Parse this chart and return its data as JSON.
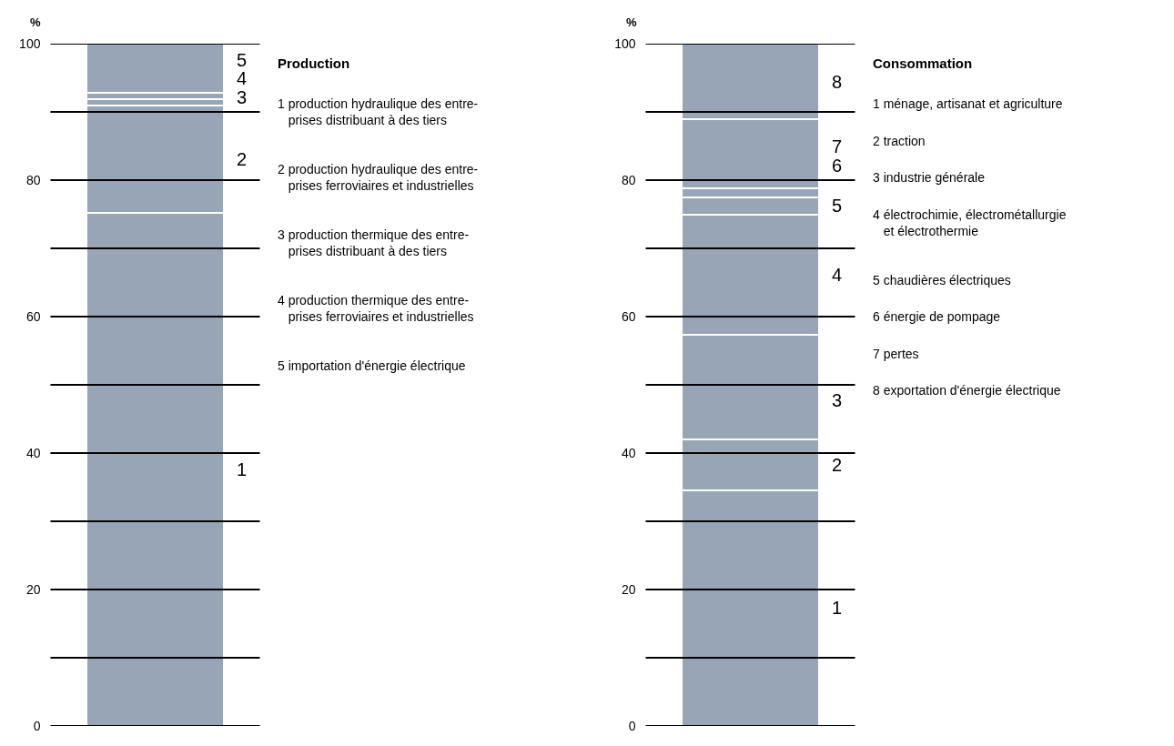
{
  "chart_data": [
    {
      "type": "bar",
      "stacked": true,
      "legend_title": "Production",
      "ylabel": "%",
      "categories": [
        null
      ],
      "tick_labels": "y",
      "grid": "y",
      "ylim": [
        0,
        100
      ],
      "yticks": [
        0,
        {
          "value": 10,
          "label": null
        },
        20,
        {
          "value": 30,
          "label": null
        },
        40,
        {
          "value": 50,
          "label": null
        },
        60,
        {
          "value": 70,
          "label": null
        },
        80,
        {
          "value": 90,
          "label": null
        },
        100
      ],
      "series": [
        {
          "name": "1",
          "color": "#97a5b7",
          "values": [
            75.2
          ]
        },
        {
          "name": "2",
          "color": "#97a5b7",
          "values": [
            15.8
          ]
        },
        {
          "name": "3",
          "color": "#97a5b7",
          "values": [
            0.9
          ]
        },
        {
          "name": "4",
          "color": "#97a5b7",
          "values": [
            0.9
          ]
        },
        {
          "name": "5",
          "color": "#97a5b7",
          "values": [
            7.2
          ]
        }
      ],
      "annotations": [
        "1 production hydraulique des entre-\n   prises distribuant à des tiers",
        "2 production hydraulique des entre-\n   prises ferroviaires et industrielles",
        "3 production thermique des entre-\n   prises distribuant à des tiers",
        "4 production thermique des entre-\n   prises ferroviaires et industrielles",
        "5 importation d'énergie électrique"
      ]
    },
    {
      "type": "bar",
      "stacked": true,
      "legend_title": "Consommation",
      "ylabel": "%",
      "categories": [
        null
      ],
      "tick_labels": "y",
      "grid": "y",
      "ylim": [
        0,
        100
      ],
      "yticks": [
        0,
        {
          "value": 10,
          "label": null
        },
        20,
        {
          "value": 30,
          "label": null
        },
        40,
        {
          "value": 50,
          "label": null
        },
        60,
        {
          "value": 70,
          "label": null
        },
        80,
        {
          "value": 90,
          "label": null
        },
        100
      ],
      "series": [
        {
          "name": "1",
          "color": "#97a5b7",
          "values": [
            34.6
          ]
        },
        {
          "name": "2",
          "color": "#97a5b7",
          "values": [
            7.4
          ]
        },
        {
          "name": "3",
          "color": "#97a5b7",
          "values": [
            15.3
          ]
        },
        {
          "name": "4",
          "color": "#97a5b7",
          "values": [
            17.7
          ]
        },
        {
          "name": "5",
          "color": "#97a5b7",
          "values": [
            2.5
          ]
        },
        {
          "name": "6",
          "color": "#97a5b7",
          "values": [
            1.3
          ]
        },
        {
          "name": "7",
          "color": "#97a5b7",
          "values": [
            10.1
          ]
        },
        {
          "name": "8",
          "color": "#97a5b7",
          "values": [
            11.1
          ]
        }
      ],
      "annotations": [
        "1 ménage, artisanat et agriculture",
        "2 traction",
        "3 industrie générale",
        "4 électrochimie, électrométallurgie\n   et électrothermie",
        "5 chaudières électriques",
        "6 énergie de pompage",
        "7 pertes",
        "8 exportation d'énergie électrique"
      ]
    }
  ]
}
